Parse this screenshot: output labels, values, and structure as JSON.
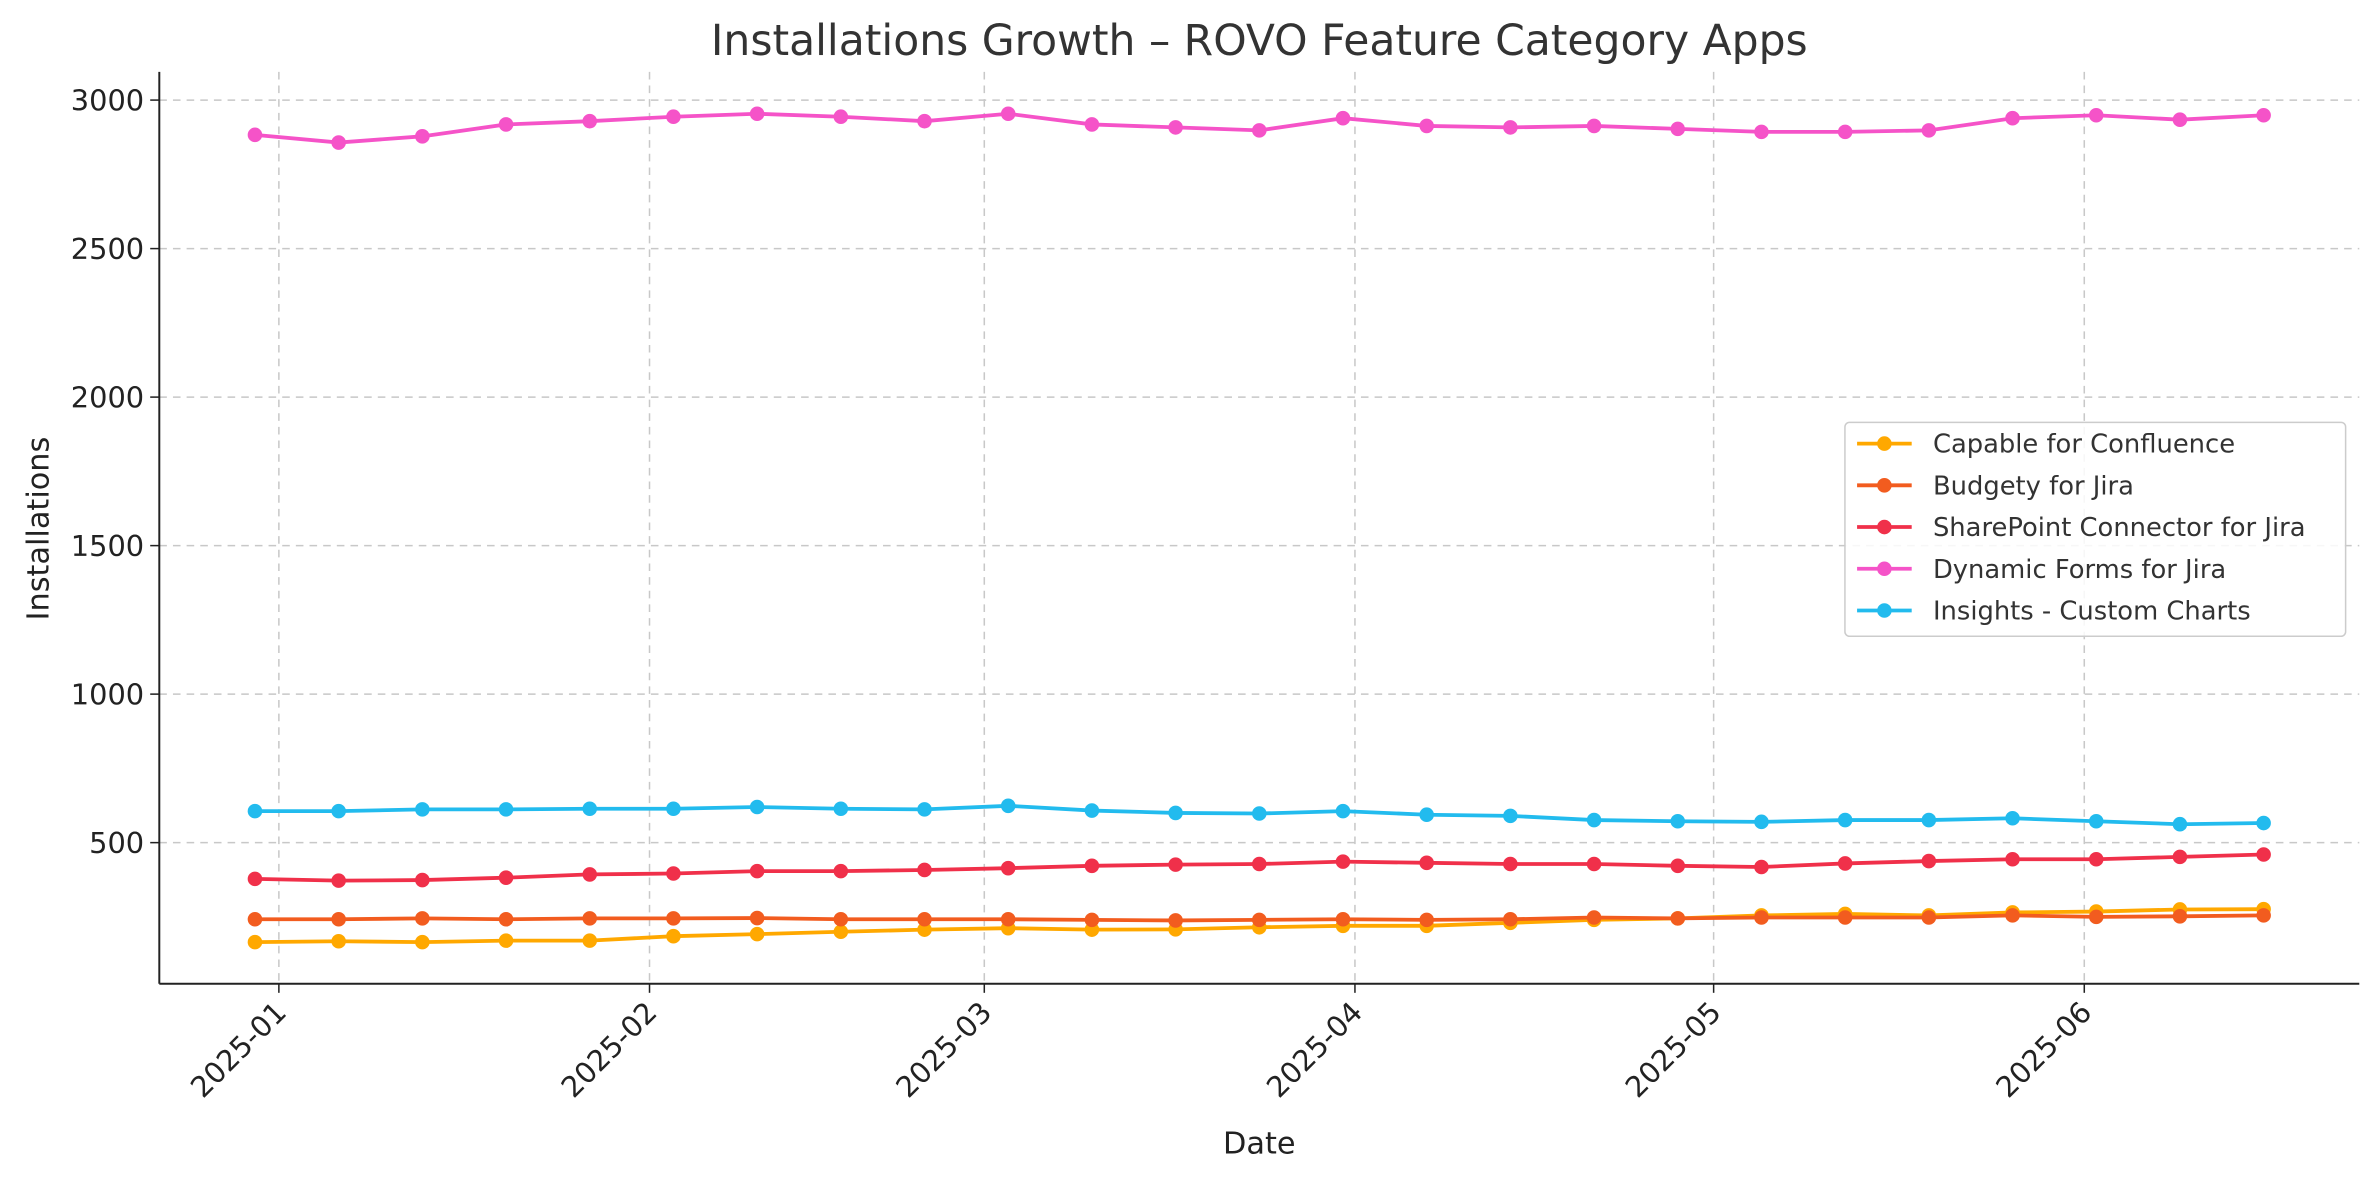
{
  "chart_data": {
    "type": "line",
    "title": "Installations Growth – ROVO Feature Category Apps",
    "xlabel": "Date",
    "ylabel": "Installations",
    "x": [
      "2024-12-30",
      "2025-01-06",
      "2025-01-13",
      "2025-01-20",
      "2025-01-27",
      "2025-02-03",
      "2025-02-10",
      "2025-02-17",
      "2025-02-24",
      "2025-03-03",
      "2025-03-10",
      "2025-03-17",
      "2025-03-24",
      "2025-03-31",
      "2025-04-07",
      "2025-04-14",
      "2025-04-21",
      "2025-04-28",
      "2025-05-05",
      "2025-05-12",
      "2025-05-19",
      "2025-05-26",
      "2025-06-02",
      "2025-06-09",
      "2025-06-16"
    ],
    "xlim": [
      "2024-12-22",
      "2025-06-24"
    ],
    "ylim": [
      25,
      3095
    ],
    "x_ticks": [
      {
        "date": "2025-01-01",
        "label": "2025-01"
      },
      {
        "date": "2025-02-01",
        "label": "2025-02"
      },
      {
        "date": "2025-03-01",
        "label": "2025-03"
      },
      {
        "date": "2025-04-01",
        "label": "2025-04"
      },
      {
        "date": "2025-05-01",
        "label": "2025-05"
      },
      {
        "date": "2025-06-01",
        "label": "2025-06"
      }
    ],
    "y_ticks": [
      500,
      1000,
      1500,
      2000,
      2500,
      3000
    ],
    "grid": true,
    "legend_placement": "center-right",
    "series": [
      {
        "name": "Capable for Confluence",
        "color": "#FFA800",
        "values": [
          165,
          168,
          165,
          170,
          170,
          185,
          192,
          200,
          207,
          212,
          207,
          208,
          215,
          220,
          220,
          230,
          240,
          245,
          255,
          260,
          255,
          265,
          268,
          275,
          276
        ]
      },
      {
        "name": "Budgety for Jira",
        "color": "#F25C1F",
        "values": [
          242,
          242,
          245,
          242,
          245,
          245,
          246,
          242,
          242,
          242,
          240,
          238,
          240,
          242,
          240,
          242,
          248,
          245,
          248,
          248,
          248,
          255,
          250,
          252,
          255
        ]
      },
      {
        "name": "SharePoint Connector for Jira",
        "color": "#F0304A",
        "values": [
          378,
          372,
          374,
          382,
          393,
          396,
          404,
          404,
          408,
          414,
          422,
          426,
          428,
          436,
          432,
          428,
          428,
          422,
          418,
          430,
          438,
          444,
          444,
          452,
          460
        ]
      },
      {
        "name": "Dynamic Forms for Jira",
        "color": "#F553C8",
        "values": [
          2883,
          2857,
          2878,
          2918,
          2929,
          2944,
          2954,
          2944,
          2929,
          2954,
          2918,
          2908,
          2898,
          2939,
          2913,
          2908,
          2913,
          2903,
          2893,
          2893,
          2898,
          2939,
          2949,
          2934,
          2949
        ]
      },
      {
        "name": "Insights - Custom Charts",
        "color": "#22BBEE",
        "values": [
          606,
          606,
          612,
          612,
          614,
          614,
          620,
          614,
          612,
          624,
          608,
          600,
          598,
          606,
          594,
          590,
          576,
          572,
          570,
          576,
          576,
          582,
          572,
          562,
          566
        ]
      }
    ]
  }
}
